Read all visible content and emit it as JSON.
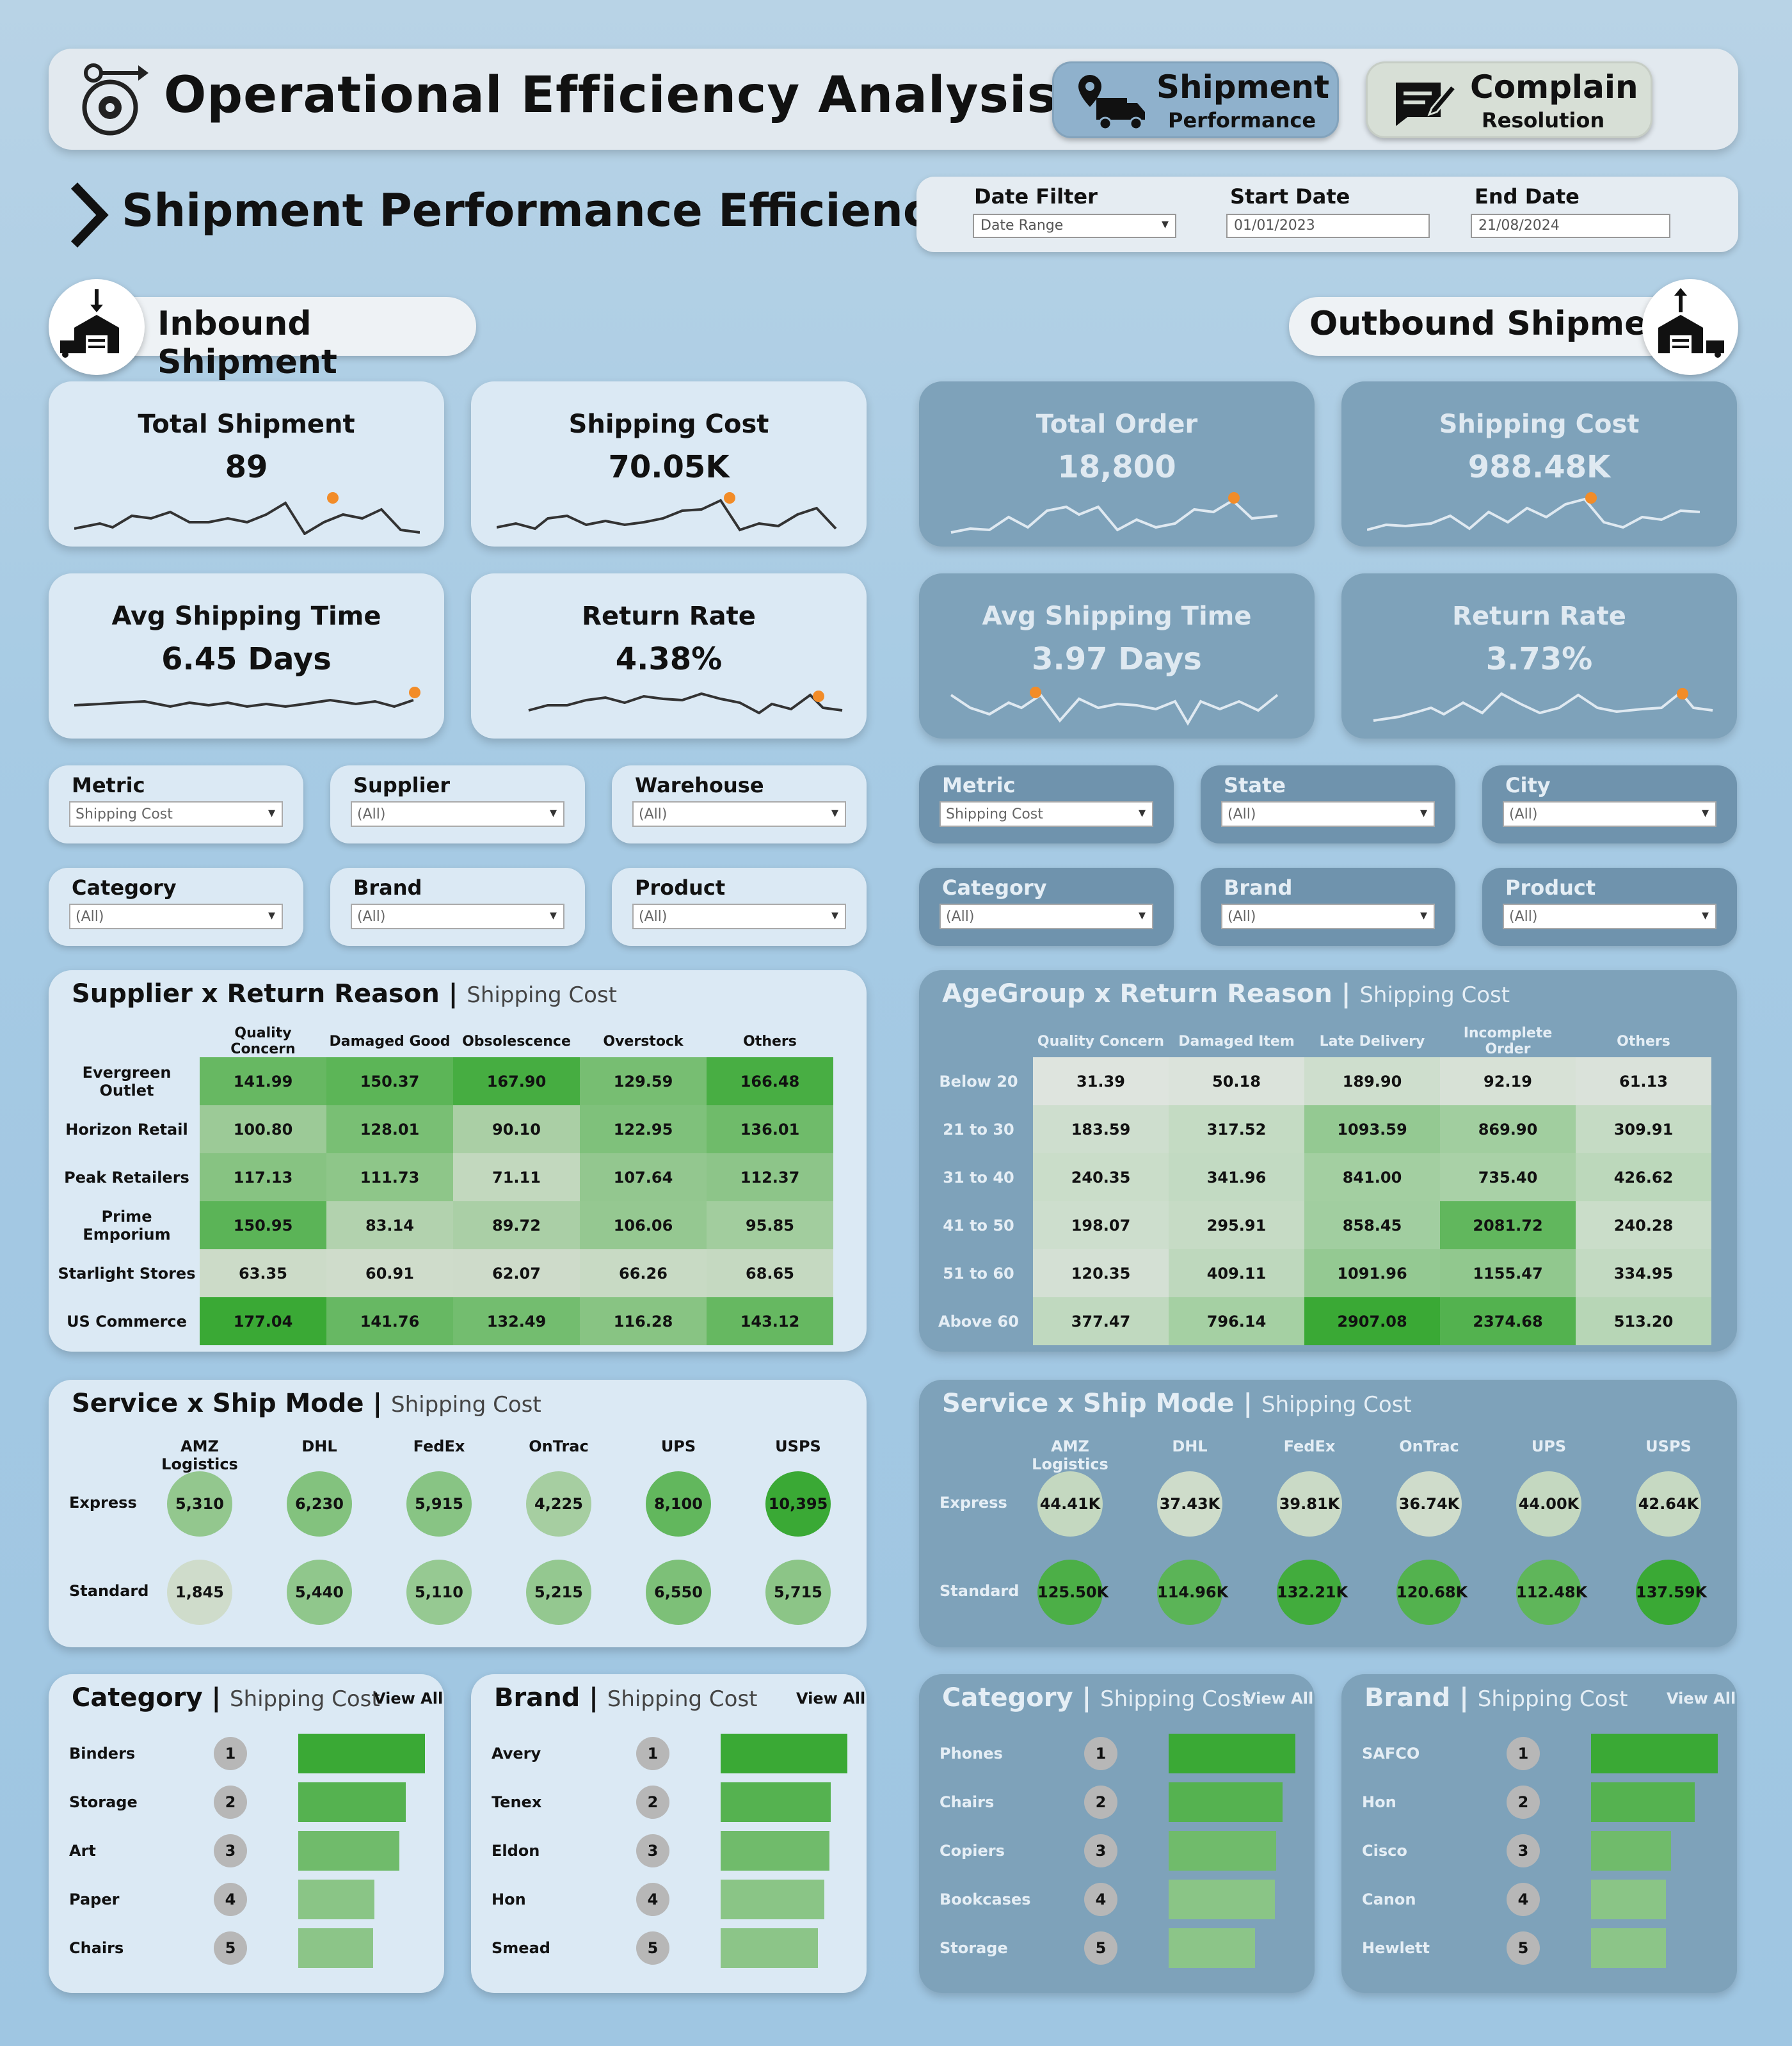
{
  "header": {
    "title": "Operational Efficiency Analysis",
    "nav": [
      {
        "line1": "Shipment",
        "line2": "Performance"
      },
      {
        "line1": "Complain",
        "line2": "Resolution"
      }
    ]
  },
  "section_title": "Shipment Performance Efficiency",
  "filters": {
    "date_filter_label": "Date Filter",
    "date_filter_value": "Date Range",
    "start_label": "Start Date",
    "start_value": "01/01/2023",
    "end_label": "End Date",
    "end_value": "21/08/2024"
  },
  "inbound": {
    "title": "Inbound Shipment",
    "kpis": [
      {
        "title": "Total Shipment",
        "value": "89"
      },
      {
        "title": "Shipping Cost",
        "value": "70.05K"
      },
      {
        "title": "Avg Shipping Time",
        "value": "6.45 Days"
      },
      {
        "title": "Return Rate",
        "value": "4.38%"
      }
    ],
    "slicers": [
      {
        "label": "Metric",
        "value": "Shipping Cost"
      },
      {
        "label": "Supplier",
        "value": "(All)"
      },
      {
        "label": "Warehouse",
        "value": "(All)"
      },
      {
        "label": "Category",
        "value": "(All)"
      },
      {
        "label": "Brand",
        "value": "(All)"
      },
      {
        "label": "Product",
        "value": "(All)"
      }
    ],
    "heatmap": {
      "title": "Supplier x Return Reason",
      "subtitle": "Shipping Cost",
      "columns": [
        "Quality Concern",
        "Damaged Good",
        "Obsolescence",
        "Overstock",
        "Others"
      ],
      "rows": [
        {
          "label": "Evergreen Outlet",
          "values": [
            "141.99",
            "150.37",
            "167.90",
            "129.59",
            "166.48"
          ]
        },
        {
          "label": "Horizon Retail",
          "values": [
            "100.80",
            "128.01",
            "90.10",
            "122.95",
            "136.01"
          ]
        },
        {
          "label": "Peak Retailers",
          "values": [
            "117.13",
            "111.73",
            "71.11",
            "107.64",
            "112.37"
          ]
        },
        {
          "label": "Prime Emporium",
          "values": [
            "150.95",
            "83.14",
            "89.72",
            "106.06",
            "95.85"
          ]
        },
        {
          "label": "Starlight Stores",
          "values": [
            "63.35",
            "60.91",
            "62.07",
            "66.26",
            "68.65"
          ]
        },
        {
          "label": "US Commerce",
          "values": [
            "177.04",
            "141.76",
            "132.49",
            "116.28",
            "143.12"
          ]
        }
      ]
    },
    "service": {
      "title": "Service x Ship Mode",
      "subtitle": "Shipping Cost",
      "columns": [
        "AMZ Logistics",
        "DHL",
        "FedEx",
        "OnTrac",
        "UPS",
        "USPS"
      ],
      "rows": [
        {
          "label": "Express",
          "values": [
            "5,310",
            "6,230",
            "5,915",
            "4,225",
            "8,100",
            "10,395"
          ]
        },
        {
          "label": "Standard",
          "values": [
            "1,845",
            "5,440",
            "5,110",
            "5,215",
            "6,550",
            "5,715"
          ]
        }
      ]
    },
    "category": {
      "title": "Category",
      "subtitle": "Shipping Cost",
      "view_all": "View All",
      "items": [
        {
          "label": "Binders",
          "rank": "1",
          "share": 1.0
        },
        {
          "label": "Storage",
          "rank": "2",
          "share": 0.85
        },
        {
          "label": "Art",
          "rank": "3",
          "share": 0.8
        },
        {
          "label": "Paper",
          "rank": "4",
          "share": 0.6
        },
        {
          "label": "Chairs",
          "rank": "5",
          "share": 0.59
        }
      ]
    },
    "brand": {
      "title": "Brand",
      "subtitle": "Shipping Cost",
      "view_all": "View All",
      "items": [
        {
          "label": "Avery",
          "rank": "1",
          "share": 1.0
        },
        {
          "label": "Tenex",
          "rank": "2",
          "share": 0.87
        },
        {
          "label": "Eldon",
          "rank": "3",
          "share": 0.86
        },
        {
          "label": "Hon",
          "rank": "4",
          "share": 0.82
        },
        {
          "label": "Smead",
          "rank": "5",
          "share": 0.77
        }
      ]
    }
  },
  "outbound": {
    "title": "Outbound Shipment",
    "kpis": [
      {
        "title": "Total Order",
        "value": "18,800"
      },
      {
        "title": "Shipping Cost",
        "value": "988.48K"
      },
      {
        "title": "Avg Shipping Time",
        "value": "3.97 Days"
      },
      {
        "title": "Return Rate",
        "value": "3.73%"
      }
    ],
    "slicers": [
      {
        "label": "Metric",
        "value": "Shipping Cost"
      },
      {
        "label": "State",
        "value": "(All)"
      },
      {
        "label": "City",
        "value": "(All)"
      },
      {
        "label": "Category",
        "value": "(All)"
      },
      {
        "label": "Brand",
        "value": "(All)"
      },
      {
        "label": "Product",
        "value": "(All)"
      }
    ],
    "heatmap": {
      "title": "AgeGroup x Return Reason",
      "subtitle": "Shipping Cost",
      "columns": [
        "Quality Concern",
        "Damaged Item",
        "Late Delivery",
        "Incomplete Order",
        "Others"
      ],
      "rows": [
        {
          "label": "Below 20",
          "values": [
            "31.39",
            "50.18",
            "189.90",
            "92.19",
            "61.13"
          ]
        },
        {
          "label": "21 to 30",
          "values": [
            "183.59",
            "317.52",
            "1093.59",
            "869.90",
            "309.91"
          ]
        },
        {
          "label": "31 to 40",
          "values": [
            "240.35",
            "341.96",
            "841.00",
            "735.40",
            "426.62"
          ]
        },
        {
          "label": "41 to 50",
          "values": [
            "198.07",
            "295.91",
            "858.45",
            "2081.72",
            "240.28"
          ]
        },
        {
          "label": "51 to 60",
          "values": [
            "120.35",
            "409.11",
            "1091.96",
            "1155.47",
            "334.95"
          ]
        },
        {
          "label": "Above 60",
          "values": [
            "377.47",
            "796.14",
            "2907.08",
            "2374.68",
            "513.20"
          ]
        }
      ]
    },
    "service": {
      "title": "Service x Ship Mode",
      "subtitle": "Shipping Cost",
      "columns": [
        "AMZ Logistics",
        "DHL",
        "FedEx",
        "OnTrac",
        "UPS",
        "USPS"
      ],
      "rows": [
        {
          "label": "Express",
          "values": [
            "44.41K",
            "37.43K",
            "39.81K",
            "36.74K",
            "44.00K",
            "42.64K"
          ]
        },
        {
          "label": "Standard",
          "values": [
            "125.50K",
            "114.96K",
            "132.21K",
            "120.68K",
            "112.48K",
            "137.59K"
          ]
        }
      ]
    },
    "category": {
      "title": "Category",
      "subtitle": "Shipping Cost",
      "view_all": "View All",
      "items": [
        {
          "label": "Phones",
          "rank": "1",
          "share": 1.0
        },
        {
          "label": "Chairs",
          "rank": "2",
          "share": 0.9
        },
        {
          "label": "Copiers",
          "rank": "3",
          "share": 0.85
        },
        {
          "label": "Bookcases",
          "rank": "4",
          "share": 0.84
        },
        {
          "label": "Storage",
          "rank": "5",
          "share": 0.68
        }
      ]
    },
    "brand": {
      "title": "Brand",
      "subtitle": "Shipping Cost",
      "view_all": "View All",
      "items": [
        {
          "label": "SAFCO",
          "rank": "1",
          "share": 1.0
        },
        {
          "label": "Hon",
          "rank": "2",
          "share": 0.82
        },
        {
          "label": "Cisco",
          "rank": "3",
          "share": 0.63
        },
        {
          "label": "Canon",
          "rank": "4",
          "share": 0.59
        },
        {
          "label": "Hewlett",
          "rank": "5",
          "share": 0.59
        }
      ]
    }
  },
  "colors": {
    "accent": "#f28c28",
    "green_dark": "#3aa935",
    "green_light": "#cfdccb"
  }
}
